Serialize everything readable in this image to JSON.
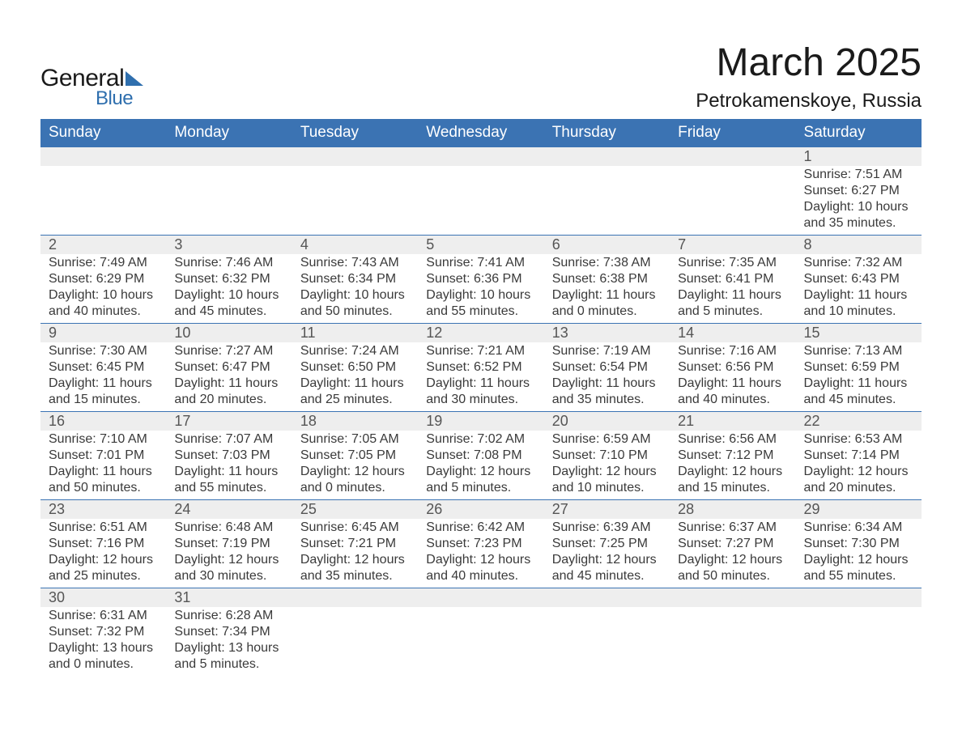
{
  "brand": {
    "general": "General",
    "blue": "Blue"
  },
  "header": {
    "month_title": "March 2025",
    "location": "Petrokamenskoye, Russia"
  },
  "style": {
    "header_bg": "#3b73b3",
    "header_text": "#ffffff",
    "daynum_bg": "#eeeeee",
    "row_divider": "#3b73b3",
    "body_text": "#3a3a3a",
    "title_text": "#1a1a1a",
    "logo_blue": "#2f6fae",
    "page_bg": "#ffffff",
    "th_fontsize": 19,
    "body_fontsize": 16,
    "title_fontsize": 48,
    "location_fontsize": 24
  },
  "weekdays": [
    "Sunday",
    "Monday",
    "Tuesday",
    "Wednesday",
    "Thursday",
    "Friday",
    "Saturday"
  ],
  "weeks": [
    [
      {
        "day": "",
        "lines": []
      },
      {
        "day": "",
        "lines": []
      },
      {
        "day": "",
        "lines": []
      },
      {
        "day": "",
        "lines": []
      },
      {
        "day": "",
        "lines": []
      },
      {
        "day": "",
        "lines": []
      },
      {
        "day": "1",
        "lines": [
          "Sunrise: 7:51 AM",
          "Sunset: 6:27 PM",
          "Daylight: 10 hours and 35 minutes."
        ]
      }
    ],
    [
      {
        "day": "2",
        "lines": [
          "Sunrise: 7:49 AM",
          "Sunset: 6:29 PM",
          "Daylight: 10 hours and 40 minutes."
        ]
      },
      {
        "day": "3",
        "lines": [
          "Sunrise: 7:46 AM",
          "Sunset: 6:32 PM",
          "Daylight: 10 hours and 45 minutes."
        ]
      },
      {
        "day": "4",
        "lines": [
          "Sunrise: 7:43 AM",
          "Sunset: 6:34 PM",
          "Daylight: 10 hours and 50 minutes."
        ]
      },
      {
        "day": "5",
        "lines": [
          "Sunrise: 7:41 AM",
          "Sunset: 6:36 PM",
          "Daylight: 10 hours and 55 minutes."
        ]
      },
      {
        "day": "6",
        "lines": [
          "Sunrise: 7:38 AM",
          "Sunset: 6:38 PM",
          "Daylight: 11 hours and 0 minutes."
        ]
      },
      {
        "day": "7",
        "lines": [
          "Sunrise: 7:35 AM",
          "Sunset: 6:41 PM",
          "Daylight: 11 hours and 5 minutes."
        ]
      },
      {
        "day": "8",
        "lines": [
          "Sunrise: 7:32 AM",
          "Sunset: 6:43 PM",
          "Daylight: 11 hours and 10 minutes."
        ]
      }
    ],
    [
      {
        "day": "9",
        "lines": [
          "Sunrise: 7:30 AM",
          "Sunset: 6:45 PM",
          "Daylight: 11 hours and 15 minutes."
        ]
      },
      {
        "day": "10",
        "lines": [
          "Sunrise: 7:27 AM",
          "Sunset: 6:47 PM",
          "Daylight: 11 hours and 20 minutes."
        ]
      },
      {
        "day": "11",
        "lines": [
          "Sunrise: 7:24 AM",
          "Sunset: 6:50 PM",
          "Daylight: 11 hours and 25 minutes."
        ]
      },
      {
        "day": "12",
        "lines": [
          "Sunrise: 7:21 AM",
          "Sunset: 6:52 PM",
          "Daylight: 11 hours and 30 minutes."
        ]
      },
      {
        "day": "13",
        "lines": [
          "Sunrise: 7:19 AM",
          "Sunset: 6:54 PM",
          "Daylight: 11 hours and 35 minutes."
        ]
      },
      {
        "day": "14",
        "lines": [
          "Sunrise: 7:16 AM",
          "Sunset: 6:56 PM",
          "Daylight: 11 hours and 40 minutes."
        ]
      },
      {
        "day": "15",
        "lines": [
          "Sunrise: 7:13 AM",
          "Sunset: 6:59 PM",
          "Daylight: 11 hours and 45 minutes."
        ]
      }
    ],
    [
      {
        "day": "16",
        "lines": [
          "Sunrise: 7:10 AM",
          "Sunset: 7:01 PM",
          "Daylight: 11 hours and 50 minutes."
        ]
      },
      {
        "day": "17",
        "lines": [
          "Sunrise: 7:07 AM",
          "Sunset: 7:03 PM",
          "Daylight: 11 hours and 55 minutes."
        ]
      },
      {
        "day": "18",
        "lines": [
          "Sunrise: 7:05 AM",
          "Sunset: 7:05 PM",
          "Daylight: 12 hours and 0 minutes."
        ]
      },
      {
        "day": "19",
        "lines": [
          "Sunrise: 7:02 AM",
          "Sunset: 7:08 PM",
          "Daylight: 12 hours and 5 minutes."
        ]
      },
      {
        "day": "20",
        "lines": [
          "Sunrise: 6:59 AM",
          "Sunset: 7:10 PM",
          "Daylight: 12 hours and 10 minutes."
        ]
      },
      {
        "day": "21",
        "lines": [
          "Sunrise: 6:56 AM",
          "Sunset: 7:12 PM",
          "Daylight: 12 hours and 15 minutes."
        ]
      },
      {
        "day": "22",
        "lines": [
          "Sunrise: 6:53 AM",
          "Sunset: 7:14 PM",
          "Daylight: 12 hours and 20 minutes."
        ]
      }
    ],
    [
      {
        "day": "23",
        "lines": [
          "Sunrise: 6:51 AM",
          "Sunset: 7:16 PM",
          "Daylight: 12 hours and 25 minutes."
        ]
      },
      {
        "day": "24",
        "lines": [
          "Sunrise: 6:48 AM",
          "Sunset: 7:19 PM",
          "Daylight: 12 hours and 30 minutes."
        ]
      },
      {
        "day": "25",
        "lines": [
          "Sunrise: 6:45 AM",
          "Sunset: 7:21 PM",
          "Daylight: 12 hours and 35 minutes."
        ]
      },
      {
        "day": "26",
        "lines": [
          "Sunrise: 6:42 AM",
          "Sunset: 7:23 PM",
          "Daylight: 12 hours and 40 minutes."
        ]
      },
      {
        "day": "27",
        "lines": [
          "Sunrise: 6:39 AM",
          "Sunset: 7:25 PM",
          "Daylight: 12 hours and 45 minutes."
        ]
      },
      {
        "day": "28",
        "lines": [
          "Sunrise: 6:37 AM",
          "Sunset: 7:27 PM",
          "Daylight: 12 hours and 50 minutes."
        ]
      },
      {
        "day": "29",
        "lines": [
          "Sunrise: 6:34 AM",
          "Sunset: 7:30 PM",
          "Daylight: 12 hours and 55 minutes."
        ]
      }
    ],
    [
      {
        "day": "30",
        "lines": [
          "Sunrise: 6:31 AM",
          "Sunset: 7:32 PM",
          "Daylight: 13 hours and 0 minutes."
        ]
      },
      {
        "day": "31",
        "lines": [
          "Sunrise: 6:28 AM",
          "Sunset: 7:34 PM",
          "Daylight: 13 hours and 5 minutes."
        ]
      },
      {
        "day": "",
        "lines": []
      },
      {
        "day": "",
        "lines": []
      },
      {
        "day": "",
        "lines": []
      },
      {
        "day": "",
        "lines": []
      },
      {
        "day": "",
        "lines": []
      }
    ]
  ]
}
